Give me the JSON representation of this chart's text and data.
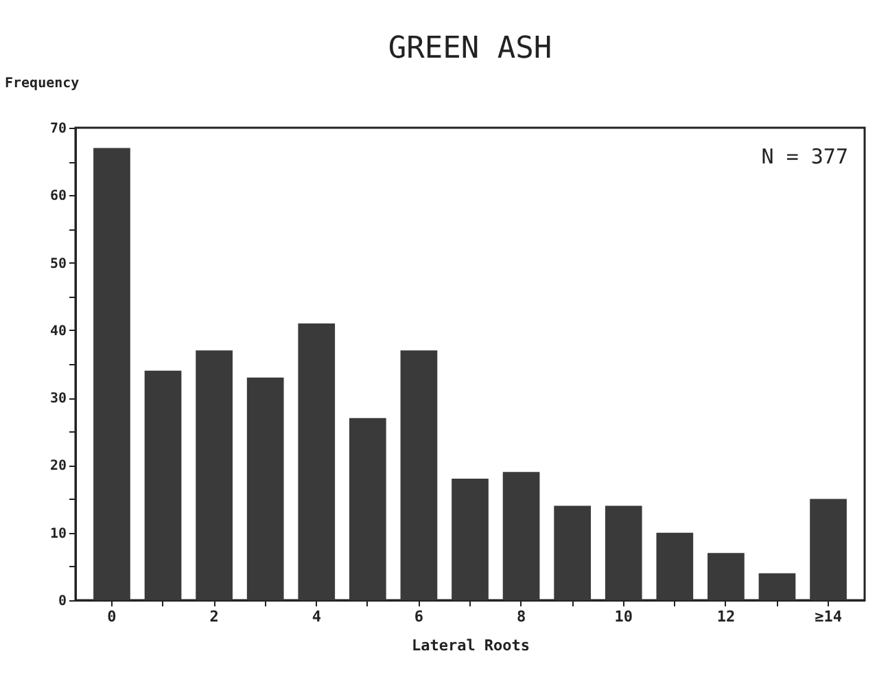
{
  "chart_data": {
    "type": "bar",
    "title": "GREEN ASH",
    "xlabel": "Lateral Roots",
    "ylabel": "Frequency",
    "categories": [
      "0",
      null,
      "2",
      null,
      "4",
      null,
      "6",
      null,
      "8",
      null,
      "10",
      null,
      "12",
      null,
      "≥14"
    ],
    "values": [
      67,
      34,
      37,
      33,
      41,
      27,
      37,
      18,
      19,
      14,
      14,
      10,
      7,
      4,
      15
    ],
    "color": "#3a3a3a",
    "ylim": [
      0,
      70
    ],
    "yticks": [
      0,
      {
        "value": 5,
        "label": null
      },
      10,
      {
        "value": 15,
        "label": null
      },
      20,
      {
        "value": 25,
        "label": null
      },
      30,
      {
        "value": 35,
        "label": null
      },
      40,
      {
        "value": 45,
        "label": null
      },
      50,
      {
        "value": 55,
        "label": null
      },
      60,
      {
        "value": 65,
        "label": null
      },
      70
    ],
    "annotations": [
      "N = 377"
    ],
    "grid": false
  }
}
